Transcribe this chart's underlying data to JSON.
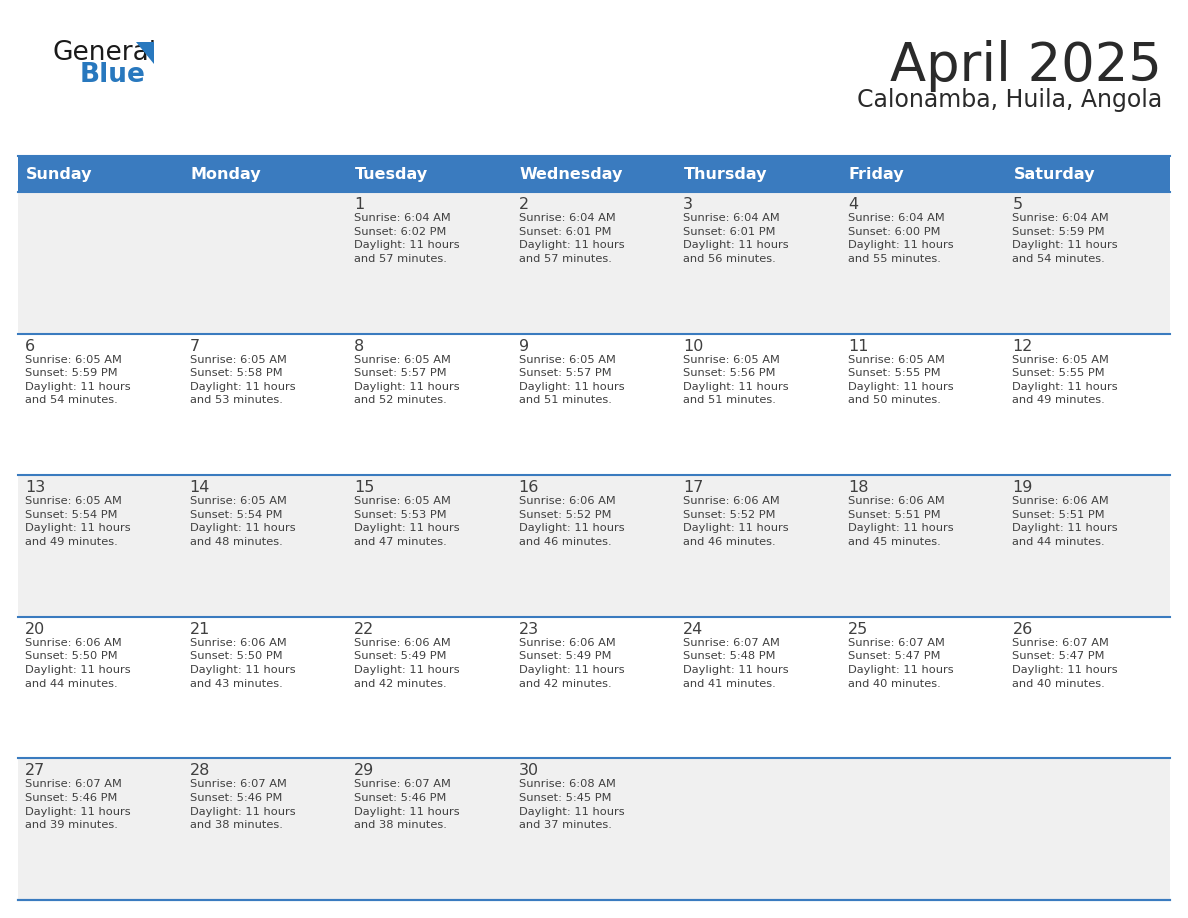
{
  "title": "April 2025",
  "subtitle": "Calonamba, Huila, Angola",
  "header_bg": "#3a7bbf",
  "header_text_color": "#ffffff",
  "row_bg_odd": "#f0f0f0",
  "row_bg_even": "#ffffff",
  "border_color": "#3a7bbf",
  "text_color": "#404040",
  "days_of_week": [
    "Sunday",
    "Monday",
    "Tuesday",
    "Wednesday",
    "Thursday",
    "Friday",
    "Saturday"
  ],
  "calendar": [
    [
      {
        "day": "",
        "info": ""
      },
      {
        "day": "",
        "info": ""
      },
      {
        "day": "1",
        "info": "Sunrise: 6:04 AM\nSunset: 6:02 PM\nDaylight: 11 hours\nand 57 minutes."
      },
      {
        "day": "2",
        "info": "Sunrise: 6:04 AM\nSunset: 6:01 PM\nDaylight: 11 hours\nand 57 minutes."
      },
      {
        "day": "3",
        "info": "Sunrise: 6:04 AM\nSunset: 6:01 PM\nDaylight: 11 hours\nand 56 minutes."
      },
      {
        "day": "4",
        "info": "Sunrise: 6:04 AM\nSunset: 6:00 PM\nDaylight: 11 hours\nand 55 minutes."
      },
      {
        "day": "5",
        "info": "Sunrise: 6:04 AM\nSunset: 5:59 PM\nDaylight: 11 hours\nand 54 minutes."
      }
    ],
    [
      {
        "day": "6",
        "info": "Sunrise: 6:05 AM\nSunset: 5:59 PM\nDaylight: 11 hours\nand 54 minutes."
      },
      {
        "day": "7",
        "info": "Sunrise: 6:05 AM\nSunset: 5:58 PM\nDaylight: 11 hours\nand 53 minutes."
      },
      {
        "day": "8",
        "info": "Sunrise: 6:05 AM\nSunset: 5:57 PM\nDaylight: 11 hours\nand 52 minutes."
      },
      {
        "day": "9",
        "info": "Sunrise: 6:05 AM\nSunset: 5:57 PM\nDaylight: 11 hours\nand 51 minutes."
      },
      {
        "day": "10",
        "info": "Sunrise: 6:05 AM\nSunset: 5:56 PM\nDaylight: 11 hours\nand 51 minutes."
      },
      {
        "day": "11",
        "info": "Sunrise: 6:05 AM\nSunset: 5:55 PM\nDaylight: 11 hours\nand 50 minutes."
      },
      {
        "day": "12",
        "info": "Sunrise: 6:05 AM\nSunset: 5:55 PM\nDaylight: 11 hours\nand 49 minutes."
      }
    ],
    [
      {
        "day": "13",
        "info": "Sunrise: 6:05 AM\nSunset: 5:54 PM\nDaylight: 11 hours\nand 49 minutes."
      },
      {
        "day": "14",
        "info": "Sunrise: 6:05 AM\nSunset: 5:54 PM\nDaylight: 11 hours\nand 48 minutes."
      },
      {
        "day": "15",
        "info": "Sunrise: 6:05 AM\nSunset: 5:53 PM\nDaylight: 11 hours\nand 47 minutes."
      },
      {
        "day": "16",
        "info": "Sunrise: 6:06 AM\nSunset: 5:52 PM\nDaylight: 11 hours\nand 46 minutes."
      },
      {
        "day": "17",
        "info": "Sunrise: 6:06 AM\nSunset: 5:52 PM\nDaylight: 11 hours\nand 46 minutes."
      },
      {
        "day": "18",
        "info": "Sunrise: 6:06 AM\nSunset: 5:51 PM\nDaylight: 11 hours\nand 45 minutes."
      },
      {
        "day": "19",
        "info": "Sunrise: 6:06 AM\nSunset: 5:51 PM\nDaylight: 11 hours\nand 44 minutes."
      }
    ],
    [
      {
        "day": "20",
        "info": "Sunrise: 6:06 AM\nSunset: 5:50 PM\nDaylight: 11 hours\nand 44 minutes."
      },
      {
        "day": "21",
        "info": "Sunrise: 6:06 AM\nSunset: 5:50 PM\nDaylight: 11 hours\nand 43 minutes."
      },
      {
        "day": "22",
        "info": "Sunrise: 6:06 AM\nSunset: 5:49 PM\nDaylight: 11 hours\nand 42 minutes."
      },
      {
        "day": "23",
        "info": "Sunrise: 6:06 AM\nSunset: 5:49 PM\nDaylight: 11 hours\nand 42 minutes."
      },
      {
        "day": "24",
        "info": "Sunrise: 6:07 AM\nSunset: 5:48 PM\nDaylight: 11 hours\nand 41 minutes."
      },
      {
        "day": "25",
        "info": "Sunrise: 6:07 AM\nSunset: 5:47 PM\nDaylight: 11 hours\nand 40 minutes."
      },
      {
        "day": "26",
        "info": "Sunrise: 6:07 AM\nSunset: 5:47 PM\nDaylight: 11 hours\nand 40 minutes."
      }
    ],
    [
      {
        "day": "27",
        "info": "Sunrise: 6:07 AM\nSunset: 5:46 PM\nDaylight: 11 hours\nand 39 minutes."
      },
      {
        "day": "28",
        "info": "Sunrise: 6:07 AM\nSunset: 5:46 PM\nDaylight: 11 hours\nand 38 minutes."
      },
      {
        "day": "29",
        "info": "Sunrise: 6:07 AM\nSunset: 5:46 PM\nDaylight: 11 hours\nand 38 minutes."
      },
      {
        "day": "30",
        "info": "Sunrise: 6:08 AM\nSunset: 5:45 PM\nDaylight: 11 hours\nand 37 minutes."
      },
      {
        "day": "",
        "info": ""
      },
      {
        "day": "",
        "info": ""
      },
      {
        "day": "",
        "info": ""
      }
    ]
  ],
  "logo_color_general": "#1a1a1a",
  "logo_color_blue": "#2878be",
  "logo_triangle_color": "#2878be"
}
